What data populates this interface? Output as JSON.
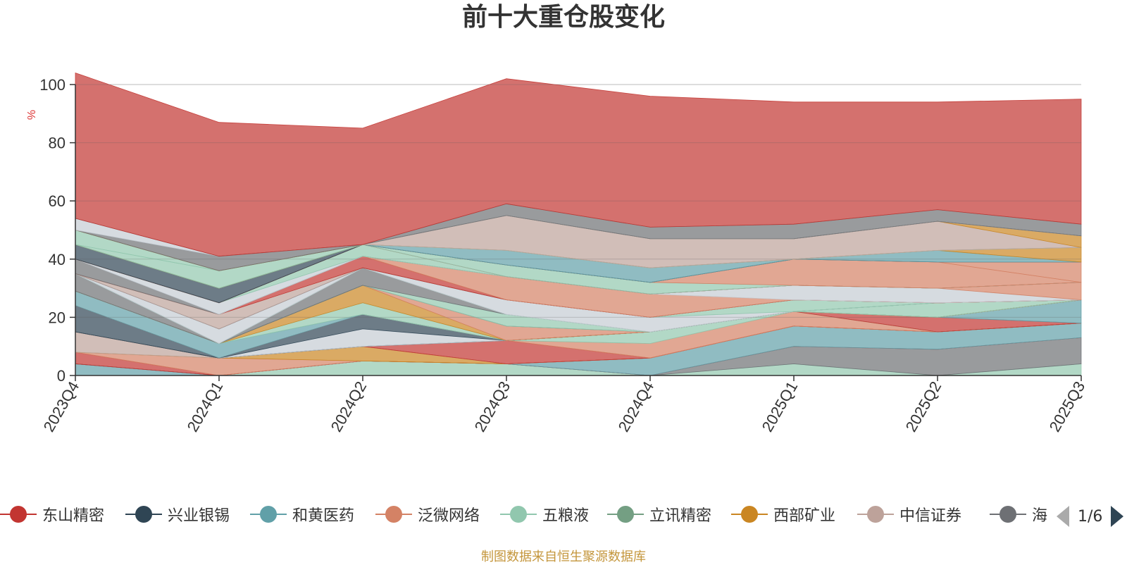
{
  "chart_data": {
    "type": "area",
    "stacked": true,
    "title": "前十大重仓股变化",
    "ylabel": "%",
    "ylim": [
      0,
      100
    ],
    "yticks": [
      0,
      20,
      40,
      60,
      80,
      100
    ],
    "categories": [
      "2023Q4",
      "2024Q1",
      "2024Q2",
      "2024Q3",
      "2024Q4",
      "2025Q1",
      "2025Q2",
      "2025Q3"
    ],
    "grid": true,
    "legend_position": "bottom",
    "bands": [
      {
        "color": "#61a0a8",
        "values": [
          4,
          0,
          0,
          0,
          0,
          0,
          0,
          0
        ]
      },
      {
        "color": "#91c7ae",
        "values": [
          0,
          0,
          5,
          4,
          0,
          4,
          0,
          4
        ]
      },
      {
        "color": "#6e7074",
        "values": [
          0,
          0,
          0,
          0,
          0,
          6,
          9,
          9
        ]
      },
      {
        "color": "#c23531",
        "values": [
          0,
          0,
          0,
          0,
          0,
          0,
          0,
          0
        ]
      },
      {
        "color": "#61a0a8",
        "values": [
          0,
          0,
          0,
          0,
          6,
          7,
          6,
          5
        ]
      },
      {
        "color": "#c23531",
        "values": [
          4,
          0,
          0,
          0,
          0,
          0,
          0,
          0
        ]
      },
      {
        "color": "#d48265",
        "values": [
          0,
          6,
          0,
          0,
          0,
          0,
          0,
          0
        ]
      },
      {
        "color": "#ca8622",
        "values": [
          0,
          0,
          5,
          0,
          0,
          0,
          0,
          0
        ]
      },
      {
        "color": "#bda29a",
        "values": [
          7,
          0,
          0,
          0,
          0,
          0,
          0,
          0
        ]
      },
      {
        "color": "#c23531",
        "values": [
          0,
          0,
          0,
          8,
          0,
          0,
          0,
          0
        ]
      },
      {
        "color": "#d48265",
        "values": [
          0,
          0,
          0,
          0,
          5,
          5,
          0,
          0
        ]
      },
      {
        "color": "#91c7ae",
        "values": [
          0,
          0,
          0,
          0,
          4,
          0,
          0,
          0
        ]
      },
      {
        "color": "#c23531",
        "values": [
          0,
          0,
          0,
          0,
          0,
          0,
          5,
          0
        ]
      },
      {
        "color": "#61a0a8",
        "values": [
          0,
          0,
          0,
          0,
          0,
          0,
          0,
          8
        ]
      },
      {
        "color": "#2f4554",
        "values": [
          9,
          0,
          0,
          0,
          0,
          0,
          0,
          0
        ]
      },
      {
        "color": "#c4ccd3",
        "values": [
          0,
          0,
          6,
          0,
          0,
          0,
          0,
          0
        ]
      },
      {
        "color": "#2f4554",
        "values": [
          0,
          0,
          5,
          0,
          0,
          0,
          0,
          0
        ]
      },
      {
        "color": "#c23531",
        "values": [
          0,
          0,
          0,
          0,
          0,
          0,
          0,
          0
        ]
      },
      {
        "color": "#61a0a8",
        "values": [
          5,
          5,
          0,
          0,
          0,
          0,
          0,
          0
        ]
      },
      {
        "color": "#91c7ae",
        "values": [
          0,
          0,
          4,
          0,
          0,
          0,
          0,
          0
        ]
      },
      {
        "color": "#ca8622",
        "values": [
          0,
          0,
          6,
          0,
          0,
          0,
          0,
          0
        ]
      },
      {
        "color": "#d48265",
        "values": [
          0,
          0,
          0,
          5,
          0,
          0,
          0,
          0
        ]
      },
      {
        "color": "#91c7ae",
        "values": [
          0,
          0,
          0,
          0,
          0,
          0,
          5,
          0
        ]
      },
      {
        "color": "#6e7074",
        "values": [
          6,
          0,
          0,
          0,
          0,
          0,
          0,
          0
        ]
      },
      {
        "color": "#91c7ae",
        "values": [
          0,
          0,
          0,
          4,
          0,
          0,
          0,
          0
        ]
      },
      {
        "color": "#6e7074",
        "values": [
          0,
          0,
          6,
          0,
          0,
          0,
          0,
          0
        ]
      },
      {
        "color": "#91c7ae",
        "values": [
          0,
          0,
          0,
          0,
          0,
          0,
          0,
          0
        ]
      },
      {
        "color": "#c4ccd3",
        "values": [
          0,
          0,
          0,
          5,
          5,
          0,
          0,
          0
        ]
      },
      {
        "color": "#91c7ae",
        "values": [
          0,
          0,
          0,
          0,
          0,
          4,
          0,
          0
        ]
      },
      {
        "color": "#c4ccd3",
        "values": [
          0,
          5,
          0,
          0,
          0,
          0,
          0,
          0
        ]
      },
      {
        "color": "#2f4554",
        "values": [
          0,
          0,
          0,
          0,
          0,
          0,
          0,
          0
        ]
      },
      {
        "color": "#bda29a",
        "values": [
          0,
          5,
          0,
          0,
          0,
          0,
          0,
          0
        ]
      },
      {
        "color": "#c23531",
        "values": [
          0,
          0,
          4,
          0,
          0,
          0,
          0,
          0
        ]
      },
      {
        "color": "#d48265",
        "values": [
          0,
          0,
          0,
          8,
          8,
          0,
          0,
          0
        ]
      },
      {
        "color": "#c4ccd3",
        "values": [
          0,
          0,
          0,
          0,
          0,
          5,
          5,
          0
        ]
      },
      {
        "color": "#d48265",
        "values": [
          0,
          0,
          0,
          0,
          0,
          0,
          0,
          6
        ]
      },
      {
        "color": "#6e7074",
        "values": [
          5,
          0,
          0,
          0,
          0,
          0,
          0,
          0
        ]
      },
      {
        "color": "#c4ccd3",
        "values": [
          0,
          4,
          0,
          0,
          0,
          0,
          0,
          0
        ]
      },
      {
        "color": "#91c7ae",
        "values": [
          0,
          0,
          4,
          0,
          0,
          0,
          0,
          0
        ]
      },
      {
        "color": "#c23531",
        "values": [
          0,
          0,
          0,
          0,
          0,
          0,
          0,
          0
        ]
      },
      {
        "color": "#91c7ae",
        "values": [
          0,
          0,
          0,
          4,
          4,
          0,
          0,
          0
        ]
      },
      {
        "color": "#d48265",
        "values": [
          0,
          0,
          0,
          0,
          0,
          9,
          9,
          0
        ]
      },
      {
        "color": "#d48265",
        "values": [
          0,
          0,
          0,
          0,
          0,
          0,
          0,
          7
        ]
      },
      {
        "color": "#2f4554",
        "values": [
          5,
          5,
          0,
          0,
          0,
          0,
          0,
          0
        ]
      },
      {
        "color": "#61a0a8",
        "values": [
          0,
          0,
          0,
          5,
          5,
          0,
          4,
          0
        ]
      },
      {
        "color": "#ca8622",
        "values": [
          0,
          0,
          0,
          0,
          0,
          0,
          0,
          5
        ]
      },
      {
        "color": "#91c7ae",
        "values": [
          0,
          6,
          0,
          0,
          0,
          0,
          0,
          0
        ]
      },
      {
        "color": "#91c7ae",
        "values": [
          5,
          0,
          0,
          0,
          0,
          0,
          0,
          0
        ]
      },
      {
        "color": "#bda29a",
        "values": [
          0,
          0,
          0,
          12,
          10,
          7,
          10,
          0
        ]
      },
      {
        "color": "#ca8622",
        "values": [
          0,
          0,
          0,
          0,
          0,
          0,
          0,
          4
        ]
      },
      {
        "color": "#6e7074",
        "values": [
          0,
          5,
          0,
          0,
          0,
          0,
          0,
          0
        ]
      },
      {
        "color": "#c4ccd3",
        "values": [
          4,
          0,
          0,
          0,
          0,
          0,
          0,
          0
        ]
      },
      {
        "color": "#6e7074",
        "values": [
          0,
          0,
          0,
          4,
          4,
          5,
          4,
          4
        ]
      },
      {
        "color": "#c23531",
        "values": [
          50,
          46,
          40,
          43,
          45,
          42,
          37,
          43
        ]
      }
    ]
  },
  "legend": {
    "items": [
      {
        "label": "东山精密",
        "color": "#c23531"
      },
      {
        "label": "兴业银锡",
        "color": "#2f4554"
      },
      {
        "label": "和黄医药",
        "color": "#61a0a8"
      },
      {
        "label": "泛微网络",
        "color": "#d48265"
      },
      {
        "label": "五粮液",
        "color": "#91c7ae"
      },
      {
        "label": "立讯精密",
        "color": "#749f83"
      },
      {
        "label": "西部矿业",
        "color": "#ca8622"
      },
      {
        "label": "中信证券",
        "color": "#bda29a"
      },
      {
        "label": "海",
        "color": "#6e7074"
      }
    ],
    "page": "1/6"
  },
  "source_note": "制图数据来自恒生聚源数据库"
}
